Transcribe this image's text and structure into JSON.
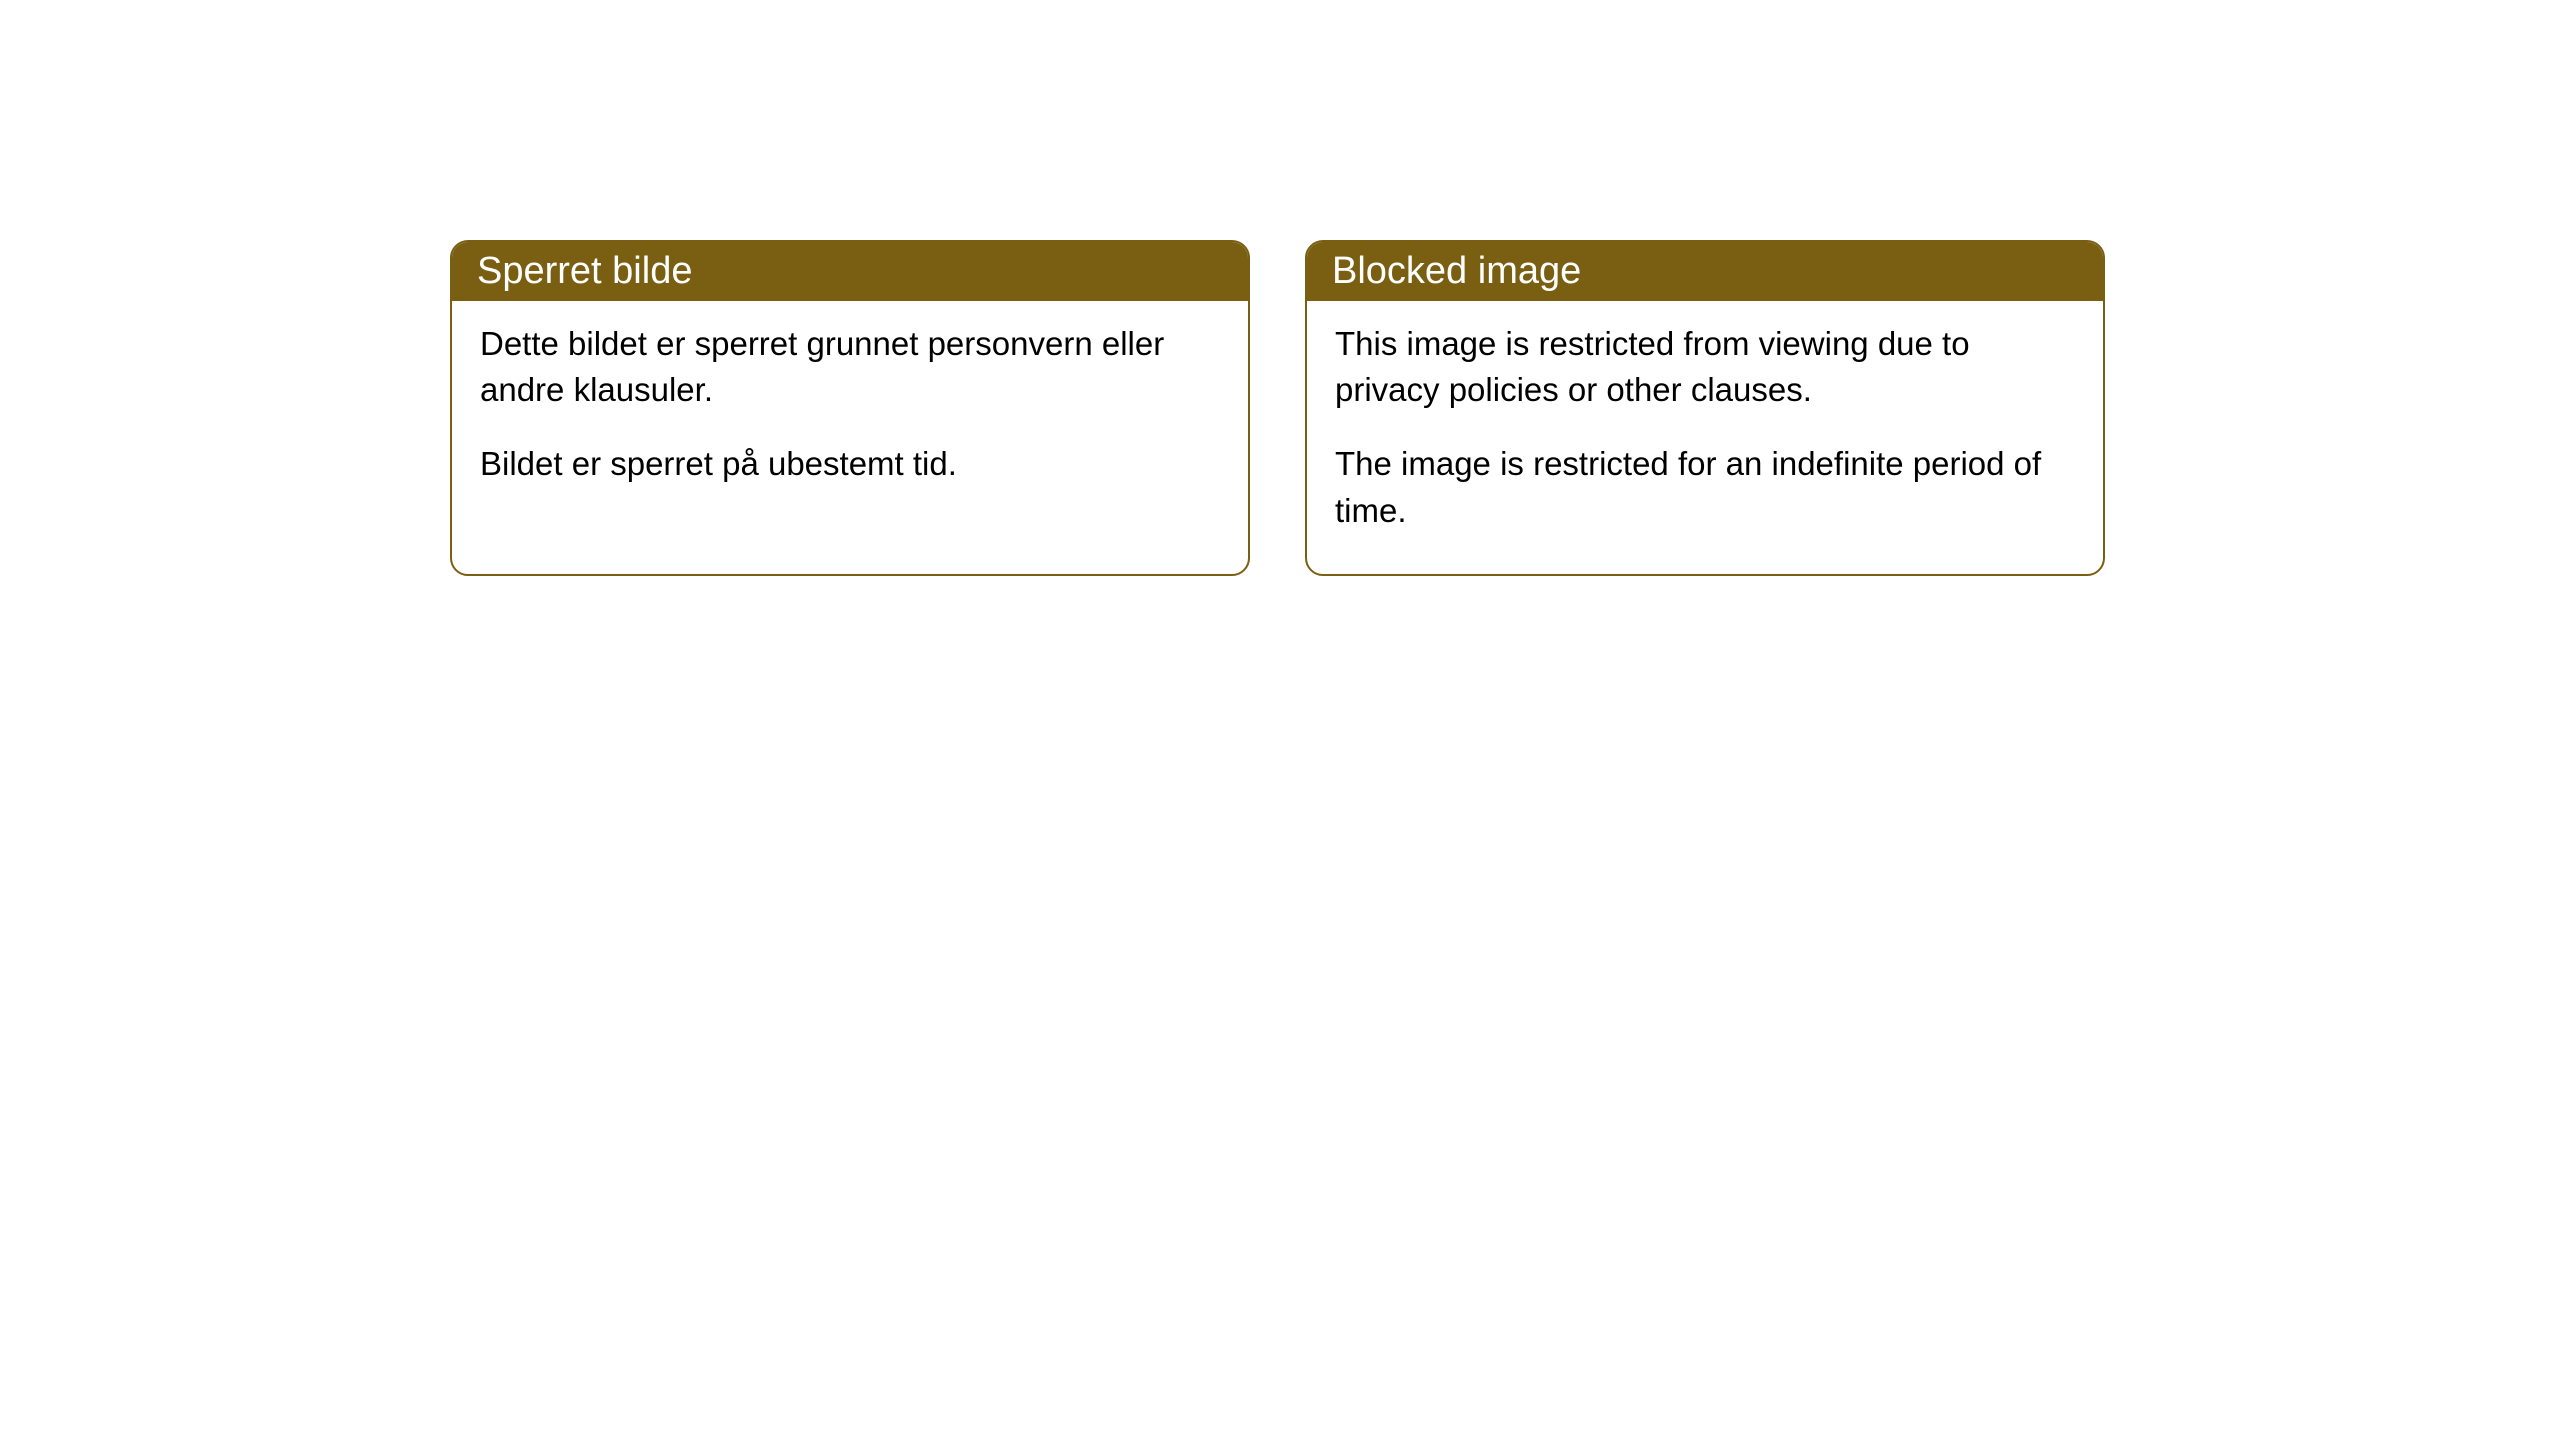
{
  "cards": [
    {
      "title": "Sperret bilde",
      "paragraph1": "Dette bildet er sperret grunnet personvern eller andre klausuler.",
      "paragraph2": "Bildet er sperret på ubestemt tid."
    },
    {
      "title": "Blocked image",
      "paragraph1": "This image is restricted from viewing due to privacy policies or other clauses.",
      "paragraph2": "The image is restricted for an indefinite period of time."
    }
  ],
  "styling": {
    "header_background": "#7a5f13",
    "header_text_color": "#ffffff",
    "border_color": "#7a5f13",
    "card_background": "#ffffff",
    "body_text_color": "#000000",
    "border_radius": 18,
    "header_fontsize": 38,
    "body_fontsize": 33
  }
}
